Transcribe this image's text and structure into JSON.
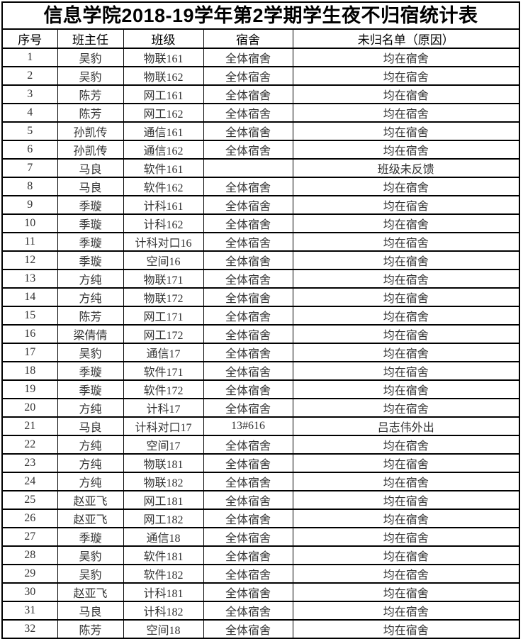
{
  "title": "信息学院2018-19学年第2学期学生夜不归宿统计表",
  "colors": {
    "border": "#000000",
    "title_text": "#000000",
    "body_text": "#333333",
    "background": "#ffffff"
  },
  "table": {
    "headers": [
      "序号",
      "班主任",
      "班级",
      "宿舍",
      "未归名单（原因）"
    ],
    "rows": [
      [
        "1",
        "吴豹",
        "物联161",
        "全体宿舍",
        "均在宿舍"
      ],
      [
        "2",
        "吴豹",
        "物联162",
        "全体宿舍",
        "均在宿舍"
      ],
      [
        "3",
        "陈芳",
        "网工161",
        "全体宿舍",
        "均在宿舍"
      ],
      [
        "4",
        "陈芳",
        "网工162",
        "全体宿舍",
        "均在宿舍"
      ],
      [
        "5",
        "孙凯传",
        "通信161",
        "全体宿舍",
        "均在宿舍"
      ],
      [
        "6",
        "孙凯传",
        "通信162",
        "全体宿舍",
        "均在宿舍"
      ],
      [
        "7",
        "马良",
        "软件161",
        "",
        "班级未反馈"
      ],
      [
        "8",
        "马良",
        "软件162",
        "全体宿舍",
        "均在宿舍"
      ],
      [
        "9",
        "季璇",
        "计科161",
        "全体宿舍",
        "均在宿舍"
      ],
      [
        "10",
        "季璇",
        "计科162",
        "全体宿舍",
        "均在宿舍"
      ],
      [
        "11",
        "季璇",
        "计科对口16",
        "全体宿舍",
        "均在宿舍"
      ],
      [
        "12",
        "季璇",
        "空间16",
        "全体宿舍",
        "均在宿舍"
      ],
      [
        "13",
        "方纯",
        "物联171",
        "全体宿舍",
        "均在宿舍"
      ],
      [
        "14",
        "方纯",
        "物联172",
        "全体宿舍",
        "均在宿舍"
      ],
      [
        "15",
        "陈芳",
        "网工171",
        "全体宿舍",
        "均在宿舍"
      ],
      [
        "16",
        "梁倩倩",
        "网工172",
        "全体宿舍",
        "均在宿舍"
      ],
      [
        "17",
        "吴豹",
        "通信17",
        "全体宿舍",
        "均在宿舍"
      ],
      [
        "18",
        "季璇",
        "软件171",
        "全体宿舍",
        "均在宿舍"
      ],
      [
        "19",
        "季璇",
        "软件172",
        "全体宿舍",
        "均在宿舍"
      ],
      [
        "20",
        "方纯",
        "计科17",
        "全体宿舍",
        "均在宿舍"
      ],
      [
        "21",
        "马良",
        "计科对口17",
        "13#616",
        "吕志伟外出"
      ],
      [
        "22",
        "方纯",
        "空间17",
        "全体宿舍",
        "均在宿舍"
      ],
      [
        "23",
        "方纯",
        "物联181",
        "全体宿舍",
        "均在宿舍"
      ],
      [
        "24",
        "方纯",
        "物联182",
        "全体宿舍",
        "均在宿舍"
      ],
      [
        "25",
        "赵亚飞",
        "网工181",
        "全体宿舍",
        "均在宿舍"
      ],
      [
        "26",
        "赵亚飞",
        "网工182",
        "全体宿舍",
        "均在宿舍"
      ],
      [
        "27",
        "季璇",
        "通信18",
        "全体宿舍",
        "均在宿舍"
      ],
      [
        "28",
        "吴豹",
        "软件181",
        "全体宿舍",
        "均在宿舍"
      ],
      [
        "29",
        "吴豹",
        "软件182",
        "全体宿舍",
        "均在宿舍"
      ],
      [
        "30",
        "赵亚飞",
        "计科181",
        "全体宿舍",
        "均在宿舍"
      ],
      [
        "31",
        "马良",
        "计科182",
        "全体宿舍",
        "均在宿舍"
      ],
      [
        "32",
        "陈芳",
        "空间18",
        "全体宿舍",
        "均在宿舍"
      ]
    ]
  }
}
